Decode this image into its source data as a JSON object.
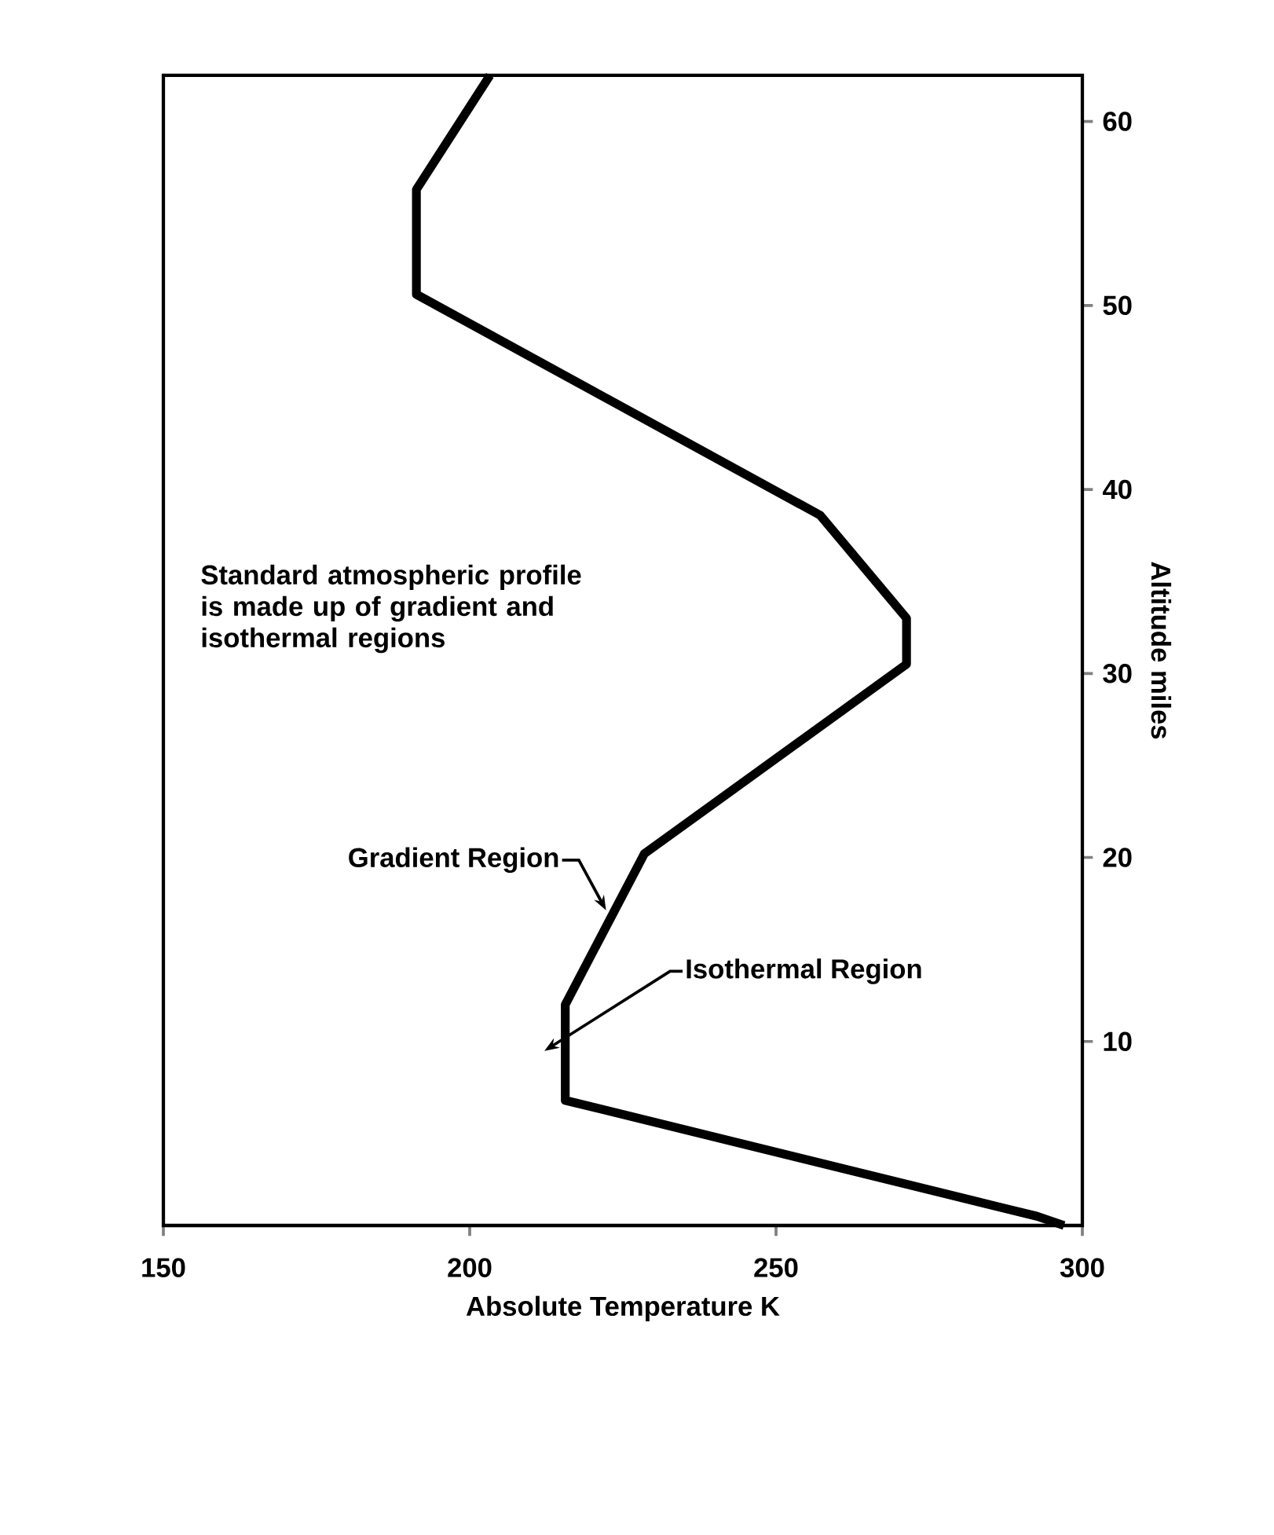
{
  "chart_data": {
    "type": "line",
    "xlabel": "Absolute Temperature  K",
    "ylabel": "Altitude  miles",
    "x": [
      297,
      292.6,
      215.6,
      215.6,
      228.5,
      271.3,
      271.3,
      257.2,
      191.3,
      191.3,
      203.3
    ],
    "series": [
      {
        "color": "#000000",
        "values": [
          0,
          0.5,
          6.8,
          12.0,
          20.2,
          30.5,
          33.0,
          38.6,
          50.6,
          56.3,
          62.5
        ]
      }
    ],
    "xlim": [
      150,
      300
    ],
    "xticks": [
      150,
      200,
      250,
      300
    ],
    "ylim": [
      0,
      62.5
    ],
    "yticks": [
      10,
      20,
      30,
      40,
      50,
      60
    ],
    "annotations": [
      "Standard atmospheric profile is made up of gradient and isothermal regions",
      {
        "text": "Gradient Region",
        "x": 222.6,
        "y": 16.9
      },
      "Isothermal Region"
    ]
  }
}
